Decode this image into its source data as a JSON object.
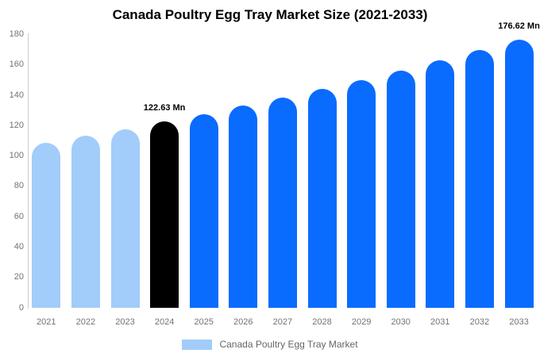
{
  "title": "Canada Poultry Egg Tray Market Size (2021-2033)",
  "legend": {
    "label": "Canada Poultry Egg Tray Market",
    "swatch_color": "#a2ccfa"
  },
  "colors": {
    "historical_bar": "#a2ccfa",
    "highlight_bar": "#000000",
    "forecast_bar": "#0a6bff",
    "axis_line": "#cccccc",
    "tick_text": "#737373",
    "data_label_text": "#000000"
  },
  "chart_data": {
    "type": "bar",
    "title": "Canada Poultry Egg Tray Market Size (2021-2033)",
    "xlabel": "",
    "ylabel": "",
    "categories": [
      "2021",
      "2022",
      "2023",
      "2024",
      "2025",
      "2026",
      "2027",
      "2028",
      "2029",
      "2030",
      "2031",
      "2032",
      "2033"
    ],
    "values": [
      108.63,
      113.13,
      117.81,
      122.63,
      127.71,
      132.99,
      138.49,
      144.22,
      150.19,
      156.4,
      162.87,
      169.6,
      176.62
    ],
    "bar_colors": [
      "#a2ccfa",
      "#a2ccfa",
      "#a2ccfa",
      "#000000",
      "#0a6bff",
      "#0a6bff",
      "#0a6bff",
      "#0a6bff",
      "#0a6bff",
      "#0a6bff",
      "#0a6bff",
      "#0a6bff",
      "#0a6bff"
    ],
    "data_labels": [
      {
        "category": "2024",
        "text": "122.63 Mn"
      },
      {
        "category": "2033",
        "text": "176.62 Mn"
      }
    ],
    "ylim": [
      0,
      180
    ],
    "yticks": [
      0,
      20,
      40,
      60,
      80,
      100,
      120,
      140,
      160,
      180
    ],
    "grid": false,
    "legend_position": "bottom",
    "legend_entries": [
      "Canada Poultry Egg Tray Market"
    ]
  }
}
